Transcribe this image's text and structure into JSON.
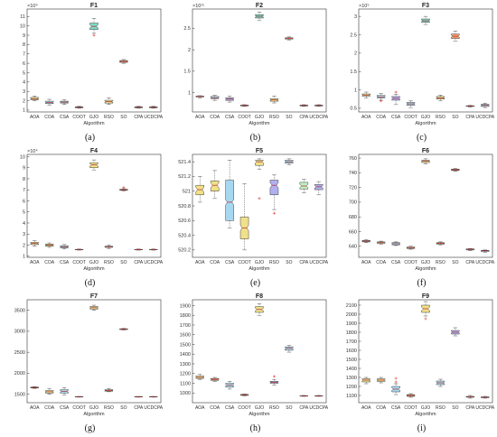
{
  "algorithms": [
    "AOA",
    "COA",
    "CSA",
    "COOT",
    "GJO",
    "RSO",
    "SO",
    "CPA",
    "UCDCPA"
  ],
  "x_label": "Algorithm",
  "chart_data": [
    {
      "type": "box",
      "title": "F1",
      "caption": "(a)",
      "xlabel": "Algorithm",
      "exponent": "×10⁹",
      "ylim": [
        0.8,
        11.8
      ],
      "yticks": [
        1,
        2,
        3,
        4,
        5,
        6,
        7,
        8,
        9,
        10,
        11
      ],
      "boxes": [
        {
          "min": 2.0,
          "q1": 2.1,
          "med": 2.2,
          "q3": 2.35,
          "max": 2.5,
          "color": "#f0e08a"
        },
        {
          "min": 1.55,
          "q1": 1.7,
          "med": 1.8,
          "q3": 1.95,
          "max": 2.15,
          "color": "#a8d8f0"
        },
        {
          "min": 1.6,
          "q1": 1.75,
          "med": 1.85,
          "q3": 1.95,
          "max": 2.1,
          "color": "#a8d8f0"
        },
        {
          "min": 1.2,
          "q1": 1.25,
          "med": 1.3,
          "q3": 1.35,
          "max": 1.4,
          "color": "#cfcfcf"
        },
        {
          "min": 9.2,
          "q1": 9.6,
          "med": 9.95,
          "q3": 10.3,
          "max": 10.8,
          "color": "#7fd8c8",
          "outliers": [
            9.0
          ]
        },
        {
          "min": 1.6,
          "q1": 1.75,
          "med": 1.9,
          "q3": 2.05,
          "max": 2.3,
          "color": "#f0e08a"
        },
        {
          "min": 6.0,
          "q1": 6.1,
          "med": 6.2,
          "q3": 6.3,
          "max": 6.4,
          "color": "#f0a070"
        },
        {
          "min": 1.2,
          "q1": 1.25,
          "med": 1.3,
          "q3": 1.35,
          "max": 1.4,
          "color": "#c8e0e8"
        },
        {
          "min": 1.2,
          "q1": 1.25,
          "med": 1.3,
          "q3": 1.35,
          "max": 1.4,
          "color": "#c8e0e8"
        }
      ]
    },
    {
      "type": "box",
      "title": "F2",
      "caption": "(b)",
      "xlabel": "Algorithm",
      "exponent": "×10¹¹",
      "ylim": [
        0.55,
        2.95
      ],
      "yticks": [
        1,
        1.5,
        2,
        2.5
      ],
      "boxes": [
        {
          "min": 0.88,
          "q1": 0.9,
          "med": 0.91,
          "q3": 0.92,
          "max": 0.93,
          "color": "#f0e08a"
        },
        {
          "min": 0.82,
          "q1": 0.86,
          "med": 0.88,
          "q3": 0.91,
          "max": 0.94,
          "color": "#a8d8f0"
        },
        {
          "min": 0.78,
          "q1": 0.82,
          "med": 0.85,
          "q3": 0.88,
          "max": 0.92,
          "color": "#b0b0f0"
        },
        {
          "min": 0.68,
          "q1": 0.69,
          "med": 0.7,
          "q3": 0.71,
          "max": 0.72,
          "color": "#cfcfcf"
        },
        {
          "min": 2.68,
          "q1": 2.74,
          "med": 2.78,
          "q3": 2.82,
          "max": 2.88,
          "color": "#7fd8c8"
        },
        {
          "min": 0.76,
          "q1": 0.8,
          "med": 0.83,
          "q3": 0.86,
          "max": 0.92,
          "color": "#f0e08a"
        },
        {
          "min": 2.23,
          "q1": 2.25,
          "med": 2.27,
          "q3": 2.28,
          "max": 2.3,
          "color": "#f0a070"
        },
        {
          "min": 0.68,
          "q1": 0.69,
          "med": 0.7,
          "q3": 0.71,
          "max": 0.72,
          "color": "#c8e0e8"
        },
        {
          "min": 0.68,
          "q1": 0.69,
          "med": 0.7,
          "q3": 0.71,
          "max": 0.72,
          "color": "#c8e0e8"
        }
      ]
    },
    {
      "type": "box",
      "title": "F3",
      "caption": "(c)",
      "xlabel": "Algorithm",
      "exponent": "×10⁵",
      "ylim": [
        0.4,
        3.2
      ],
      "yticks": [
        0.5,
        1,
        1.5,
        2,
        2.5,
        3
      ],
      "boxes": [
        {
          "min": 0.78,
          "q1": 0.83,
          "med": 0.86,
          "q3": 0.89,
          "max": 0.94,
          "color": "#f0e08a"
        },
        {
          "min": 0.72,
          "q1": 0.78,
          "med": 0.81,
          "q3": 0.85,
          "max": 0.9,
          "color": "#a8d8f0",
          "outliers": [
            0.7
          ]
        },
        {
          "min": 0.6,
          "q1": 0.72,
          "med": 0.77,
          "q3": 0.82,
          "max": 0.88,
          "color": "#b0b0f0",
          "outliers": [
            0.94
          ]
        },
        {
          "min": 0.52,
          "q1": 0.58,
          "med": 0.62,
          "q3": 0.66,
          "max": 0.7,
          "color": "#a8d8f0"
        },
        {
          "min": 2.78,
          "q1": 2.84,
          "med": 2.88,
          "q3": 2.93,
          "max": 3.0,
          "color": "#7fd8c8"
        },
        {
          "min": 0.7,
          "q1": 0.75,
          "med": 0.78,
          "q3": 0.82,
          "max": 0.86,
          "color": "#f0e08a"
        },
        {
          "min": 2.33,
          "q1": 2.4,
          "med": 2.46,
          "q3": 2.52,
          "max": 2.6,
          "color": "#f0a070"
        },
        {
          "min": 0.53,
          "q1": 0.55,
          "med": 0.56,
          "q3": 0.57,
          "max": 0.58,
          "color": "#c8e0e8"
        },
        {
          "min": 0.52,
          "q1": 0.55,
          "med": 0.58,
          "q3": 0.61,
          "max": 0.64,
          "color": "#a8d8f0"
        }
      ]
    },
    {
      "type": "box",
      "title": "F4",
      "caption": "(d)",
      "xlabel": "Algorithm",
      "exponent": "×10⁴",
      "ylim": [
        0.9,
        10.2
      ],
      "yticks": [
        1,
        2,
        3,
        4,
        5,
        6,
        7,
        8,
        9,
        10
      ],
      "boxes": [
        {
          "min": 1.9,
          "q1": 2.05,
          "med": 2.15,
          "q3": 2.25,
          "max": 2.4,
          "color": "#f0e08a"
        },
        {
          "min": 1.8,
          "q1": 1.9,
          "med": 2.0,
          "q3": 2.1,
          "max": 2.2,
          "color": "#f0e08a"
        },
        {
          "min": 1.65,
          "q1": 1.75,
          "med": 1.85,
          "q3": 1.95,
          "max": 2.05,
          "color": "#a8d8f0"
        },
        {
          "min": 1.55,
          "q1": 1.58,
          "med": 1.6,
          "q3": 1.62,
          "max": 1.65,
          "color": "#cfcfcf"
        },
        {
          "min": 8.8,
          "q1": 9.0,
          "med": 9.25,
          "q3": 9.45,
          "max": 9.7,
          "color": "#f0e08a"
        },
        {
          "min": 1.7,
          "q1": 1.8,
          "med": 1.85,
          "q3": 1.9,
          "max": 2.0,
          "color": "#a8d8f0"
        },
        {
          "min": 6.9,
          "q1": 6.95,
          "med": 7.0,
          "q3": 7.05,
          "max": 7.1,
          "color": "#f0a070",
          "outliers": [
            7.2
          ]
        },
        {
          "min": 1.55,
          "q1": 1.58,
          "med": 1.6,
          "q3": 1.62,
          "max": 1.65,
          "color": "#c8e0e8"
        },
        {
          "min": 1.55,
          "q1": 1.58,
          "med": 1.6,
          "q3": 1.62,
          "max": 1.65,
          "color": "#c8e0e8"
        }
      ]
    },
    {
      "type": "box",
      "title": "F5",
      "caption": "(e)",
      "xlabel": "Algorithm",
      "exponent": "",
      "ylim": [
        520.1,
        521.5
      ],
      "yticks": [
        520.2,
        520.4,
        520.6,
        520.8,
        521,
        521.2,
        521.4
      ],
      "boxes": [
        {
          "min": 520.85,
          "q1": 520.95,
          "med": 521.02,
          "q3": 521.08,
          "max": 521.2,
          "color": "#f0e08a"
        },
        {
          "min": 520.9,
          "q1": 521.0,
          "med": 521.08,
          "q3": 521.14,
          "max": 521.28,
          "color": "#f0e08a"
        },
        {
          "min": 520.5,
          "q1": 520.6,
          "med": 520.85,
          "q3": 521.15,
          "max": 521.42,
          "color": "#a8d8f0"
        },
        {
          "min": 520.2,
          "q1": 520.35,
          "med": 520.5,
          "q3": 520.65,
          "max": 521.1,
          "color": "#f0e08a"
        },
        {
          "min": 521.3,
          "q1": 521.35,
          "med": 521.4,
          "q3": 521.42,
          "max": 521.44,
          "color": "#f0e08a",
          "outliers": [
            520.9
          ]
        },
        {
          "min": 520.75,
          "q1": 520.95,
          "med": 521.08,
          "q3": 521.15,
          "max": 521.22,
          "color": "#b0b0f0",
          "outliers": [
            520.7
          ]
        },
        {
          "min": 521.36,
          "q1": 521.38,
          "med": 521.4,
          "q3": 521.42,
          "max": 521.44,
          "color": "#a8d8f0"
        },
        {
          "min": 520.98,
          "q1": 521.03,
          "med": 521.07,
          "q3": 521.12,
          "max": 521.16,
          "color": "#c0f0c0"
        },
        {
          "min": 520.95,
          "q1": 521.02,
          "med": 521.06,
          "q3": 521.09,
          "max": 521.13,
          "color": "#b0b0f0"
        }
      ]
    },
    {
      "type": "box",
      "title": "F6",
      "caption": "(f)",
      "xlabel": "Algorithm",
      "exponent": "",
      "ylim": [
        625,
        765
      ],
      "yticks": [
        640,
        660,
        680,
        700,
        720,
        740,
        760
      ],
      "boxes": [
        {
          "min": 645,
          "q1": 646,
          "med": 647,
          "q3": 648,
          "max": 649,
          "color": "#cfcfcf"
        },
        {
          "min": 643,
          "q1": 644,
          "med": 645,
          "q3": 646,
          "max": 647,
          "color": "#f0e08a"
        },
        {
          "min": 641,
          "q1": 642,
          "med": 643.5,
          "q3": 645,
          "max": 646,
          "color": "#a8d8f0"
        },
        {
          "min": 636,
          "q1": 637,
          "med": 638,
          "q3": 639,
          "max": 640,
          "color": "#f0e08a"
        },
        {
          "min": 752,
          "q1": 754,
          "med": 756,
          "q3": 757,
          "max": 759,
          "color": "#f0e08a"
        },
        {
          "min": 642,
          "q1": 643,
          "med": 644,
          "q3": 645,
          "max": 646,
          "color": "#f0a070"
        },
        {
          "min": 742,
          "q1": 743,
          "med": 744,
          "q3": 745,
          "max": 746,
          "color": "#f0a070"
        },
        {
          "min": 634,
          "q1": 635,
          "med": 636,
          "q3": 636.5,
          "max": 637,
          "color": "#cfcfcf"
        },
        {
          "min": 632,
          "q1": 633,
          "med": 634,
          "q3": 634.5,
          "max": 635,
          "color": "#b0b0f0"
        }
      ]
    },
    {
      "type": "box",
      "title": "F7",
      "caption": "(g)",
      "xlabel": "Algorithm",
      "exponent": "",
      "ylim": [
        1300,
        3750
      ],
      "yticks": [
        1500,
        2000,
        2500,
        3000,
        3500
      ],
      "boxes": [
        {
          "min": 1640,
          "q1": 1650,
          "med": 1660,
          "q3": 1670,
          "max": 1680,
          "color": "#f0e08a"
        },
        {
          "min": 1500,
          "q1": 1530,
          "med": 1560,
          "q3": 1590,
          "max": 1640,
          "color": "#f0e08a"
        },
        {
          "min": 1480,
          "q1": 1530,
          "med": 1570,
          "q3": 1610,
          "max": 1660,
          "color": "#a8d8f0"
        },
        {
          "min": 1430,
          "q1": 1435,
          "med": 1440,
          "q3": 1445,
          "max": 1450,
          "color": "#cfcfcf"
        },
        {
          "min": 3500,
          "q1": 3530,
          "med": 3560,
          "q3": 3590,
          "max": 3620,
          "color": "#f0e08a"
        },
        {
          "min": 1560,
          "q1": 1575,
          "med": 1590,
          "q3": 1610,
          "max": 1640,
          "color": "#f0a070"
        },
        {
          "min": 3030,
          "q1": 3040,
          "med": 3050,
          "q3": 3060,
          "max": 3070,
          "color": "#f0a070"
        },
        {
          "min": 1430,
          "q1": 1435,
          "med": 1440,
          "q3": 1445,
          "max": 1450,
          "color": "#c8e0e8"
        },
        {
          "min": 1430,
          "q1": 1435,
          "med": 1440,
          "q3": 1445,
          "max": 1450,
          "color": "#c8e0e8"
        }
      ]
    },
    {
      "type": "box",
      "title": "F8",
      "caption": "(h)",
      "xlabel": "Algorithm",
      "exponent": "",
      "ylim": [
        900,
        1960
      ],
      "yticks": [
        1000,
        1100,
        1200,
        1300,
        1400,
        1500,
        1600,
        1700,
        1800,
        1900
      ],
      "boxes": [
        {
          "min": 1140,
          "q1": 1150,
          "med": 1160,
          "q3": 1175,
          "max": 1190,
          "color": "#f0e08a"
        },
        {
          "min": 1120,
          "q1": 1130,
          "med": 1140,
          "q3": 1150,
          "max": 1160,
          "color": "#f0a070"
        },
        {
          "min": 1040,
          "q1": 1060,
          "med": 1080,
          "q3": 1100,
          "max": 1120,
          "color": "#a8d8f0"
        },
        {
          "min": 970,
          "q1": 975,
          "med": 980,
          "q3": 985,
          "max": 990,
          "color": "#f0e08a"
        },
        {
          "min": 1800,
          "q1": 1830,
          "med": 1860,
          "q3": 1890,
          "max": 1920,
          "color": "#f0e08a"
        },
        {
          "min": 1080,
          "q1": 1100,
          "med": 1110,
          "q3": 1120,
          "max": 1140,
          "color": "#b0b0f0",
          "outliers": [
            1170
          ]
        },
        {
          "min": 1420,
          "q1": 1440,
          "med": 1460,
          "q3": 1475,
          "max": 1490,
          "color": "#a8d8f0"
        },
        {
          "min": 965,
          "q1": 967,
          "med": 970,
          "q3": 972,
          "max": 975,
          "color": "#c8e0e8"
        },
        {
          "min": 965,
          "q1": 967,
          "med": 970,
          "q3": 972,
          "max": 975,
          "color": "#c8e0e8"
        }
      ]
    },
    {
      "type": "box",
      "title": "F9",
      "caption": "(i)",
      "xlabel": "Algorithm",
      "exponent": "",
      "ylim": [
        1020,
        2160
      ],
      "yticks": [
        1100,
        1200,
        1300,
        1400,
        1500,
        1600,
        1700,
        1800,
        1900,
        2000,
        2100
      ],
      "boxes": [
        {
          "min": 1230,
          "q1": 1250,
          "med": 1270,
          "q3": 1285,
          "max": 1300,
          "color": "#f0e08a"
        },
        {
          "min": 1240,
          "q1": 1255,
          "med": 1270,
          "q3": 1285,
          "max": 1300,
          "color": "#f0e08a"
        },
        {
          "min": 1110,
          "q1": 1140,
          "med": 1170,
          "q3": 1200,
          "max": 1230,
          "color": "#a8d8f0",
          "outliers": [
            1250,
            1290
          ]
        },
        {
          "min": 1080,
          "q1": 1090,
          "med": 1100,
          "q3": 1110,
          "max": 1120,
          "color": "#f0a070"
        },
        {
          "min": 1980,
          "q1": 2020,
          "med": 2060,
          "q3": 2100,
          "max": 2140,
          "color": "#f0e08a",
          "outliers": [
            1950
          ]
        },
        {
          "min": 1200,
          "q1": 1220,
          "med": 1240,
          "q3": 1260,
          "max": 1280,
          "color": "#a8d8f0"
        },
        {
          "min": 1760,
          "q1": 1780,
          "med": 1800,
          "q3": 1820,
          "max": 1850,
          "color": "#b0b0f0"
        },
        {
          "min": 1070,
          "q1": 1080,
          "med": 1085,
          "q3": 1090,
          "max": 1100,
          "color": "#c8e0e8"
        },
        {
          "min": 1070,
          "q1": 1075,
          "med": 1080,
          "q3": 1085,
          "max": 1090,
          "color": "#b0b0f0"
        }
      ]
    }
  ]
}
